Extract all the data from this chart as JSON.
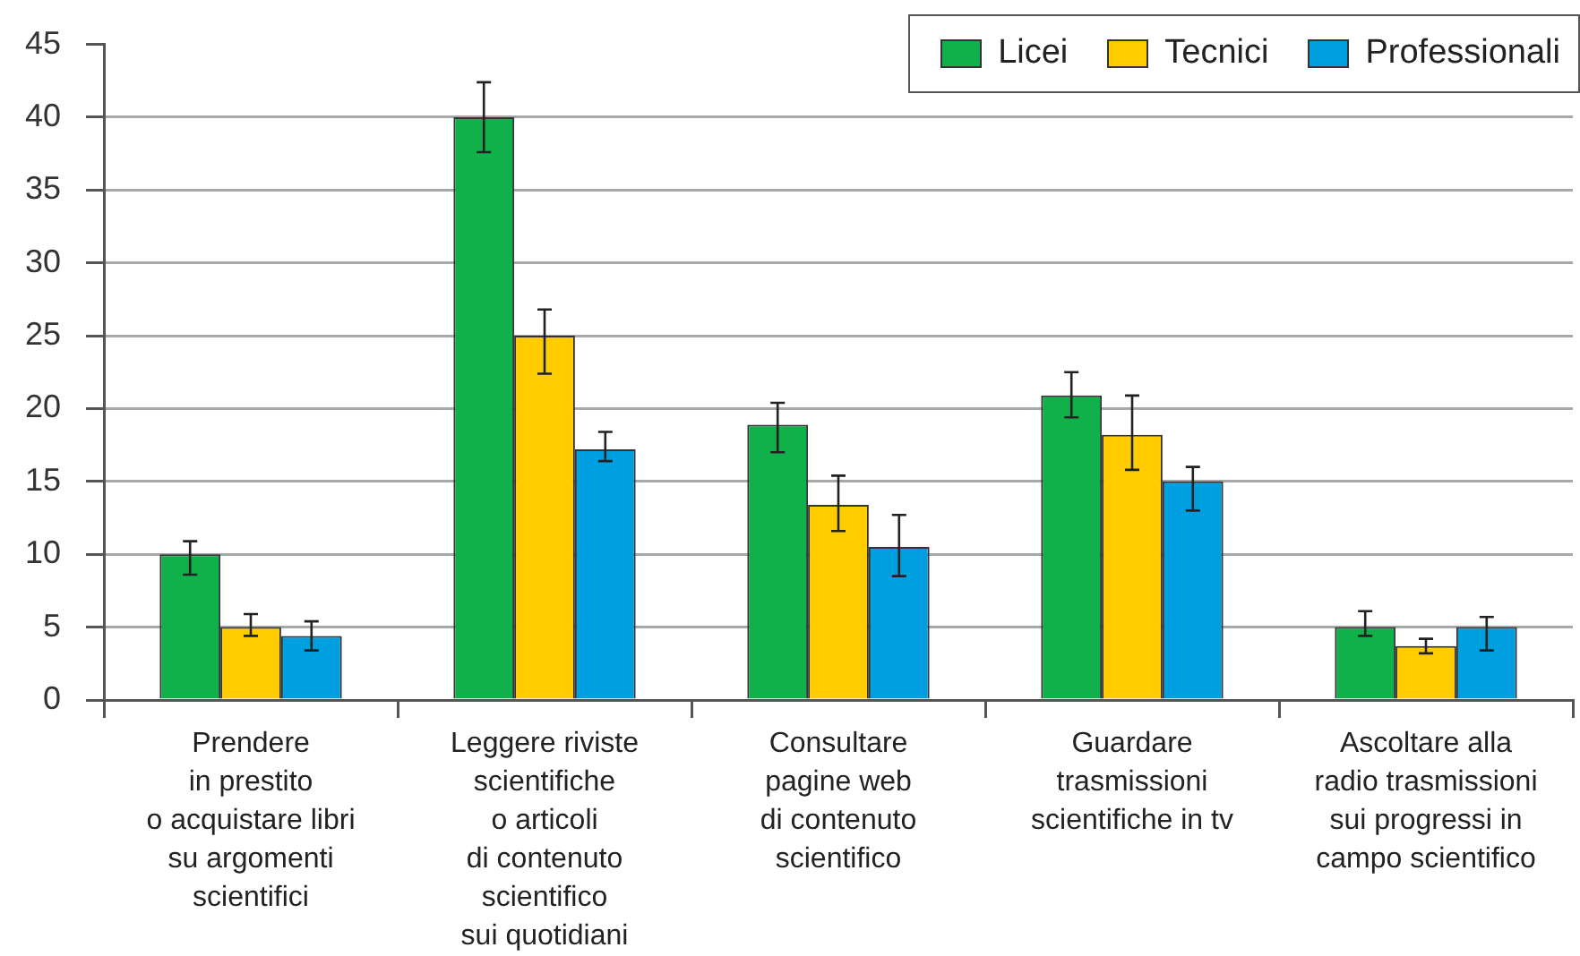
{
  "chart_data": {
    "type": "bar",
    "categories": [
      "Prendere\nin prestito\no acquistare libri\nsu argomenti\nscientifici",
      "Leggere riviste\nscientifiche\no articoli\ndi contenuto\nscientifico\nsui quotidiani",
      "Consultare\npagine web\ndi contenuto\nscientifico",
      "Guardare\ntrasmissioni\nscientifiche in tv",
      "Ascoltare alla\nradio trasmissioni\nsui progressi in\ncampo scientifico"
    ],
    "series": [
      {
        "name": "Licei",
        "color": "#10b04a",
        "values": [
          10,
          40,
          18.9,
          20.9,
          5
        ],
        "errors": [
          [
            8.6,
            10.9
          ],
          [
            37.6,
            42.4
          ],
          [
            17.0,
            20.4
          ],
          [
            19.4,
            22.5
          ],
          [
            4.4,
            6.1
          ]
        ]
      },
      {
        "name": "Tecnici",
        "color": "#ffcc00",
        "values": [
          5,
          25,
          13.4,
          18.2,
          3.7
        ],
        "errors": [
          [
            4.4,
            5.9
          ],
          [
            22.4,
            26.8
          ],
          [
            11.6,
            15.4
          ],
          [
            15.8,
            20.9
          ],
          [
            3.2,
            4.2
          ]
        ]
      },
      {
        "name": "Professionali",
        "color": "#00a0e0",
        "values": [
          4.4,
          17.2,
          10.5,
          15,
          5
        ],
        "errors": [
          [
            3.4,
            5.4
          ],
          [
            16.4,
            18.4
          ],
          [
            8.5,
            12.7
          ],
          [
            13.0,
            16.0
          ],
          [
            3.4,
            5.7
          ]
        ]
      }
    ],
    "ylim": [
      0,
      45
    ],
    "yticks": [
      0,
      5,
      10,
      15,
      20,
      25,
      30,
      35,
      40,
      45
    ],
    "grid": "y",
    "legend": "top right"
  }
}
